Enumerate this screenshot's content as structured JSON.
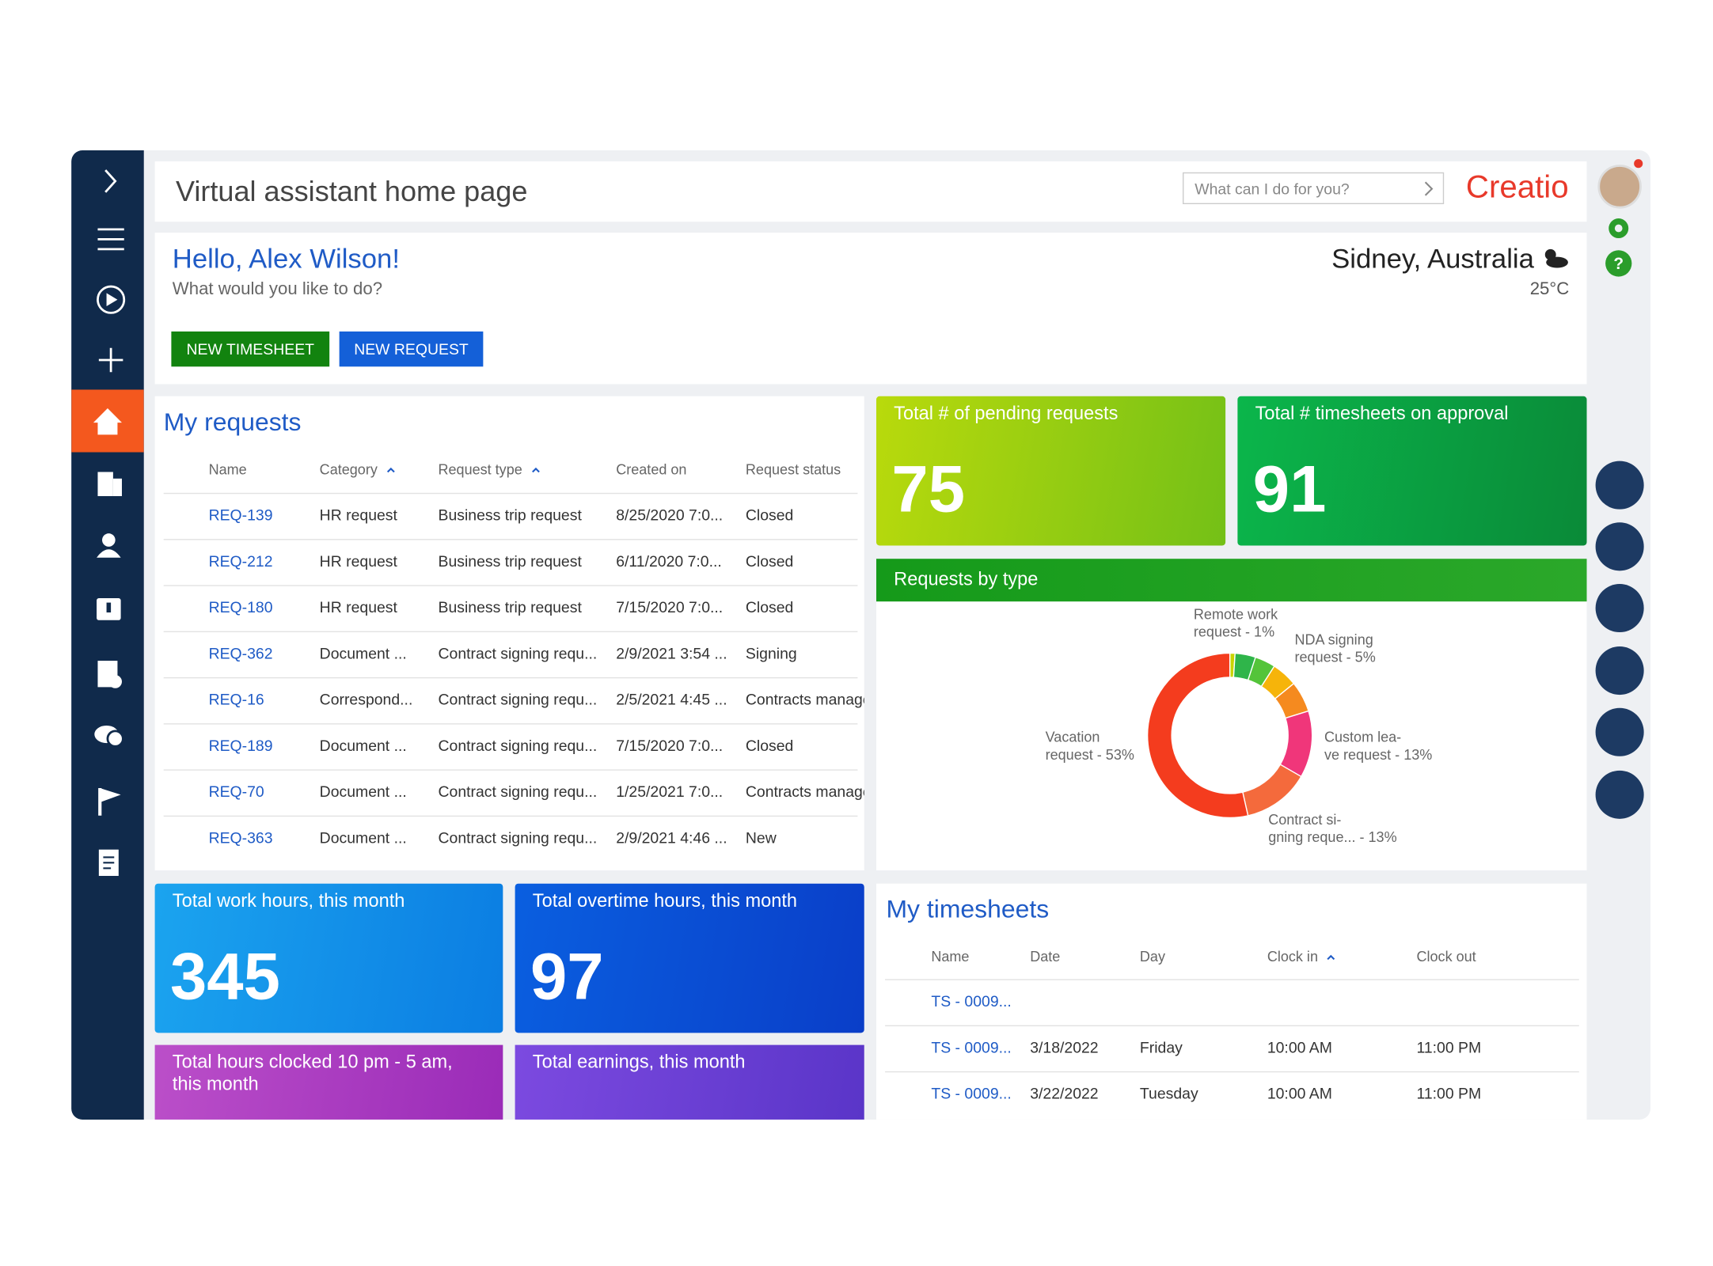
{
  "header": {
    "title": "Virtual assistant home page",
    "search_placeholder": "What can I do for you?",
    "logo": "Creatio"
  },
  "greeting": {
    "title": "Hello, Alex Wilson!",
    "subtitle": "What would you like to do?",
    "location": "Sidney, Australia",
    "temperature": "25°C",
    "buttons": [
      "NEW TIMESHEET",
      "NEW REQUEST"
    ]
  },
  "requests": {
    "title": "My requests",
    "columns": [
      "Name",
      "Category",
      "Request type",
      "Created on",
      "Request status"
    ],
    "rows": [
      [
        "REQ-139",
        "HR request",
        "Business trip request",
        "8/25/2020 7:0...",
        "Closed"
      ],
      [
        "REQ-212",
        "HR request",
        "Business trip request",
        "6/11/2020 7:0...",
        "Closed"
      ],
      [
        "REQ-180",
        "HR request",
        "Business trip request",
        "7/15/2020 7:0...",
        "Closed"
      ],
      [
        "REQ-362",
        "Document ...",
        "Contract signing requ...",
        "2/9/2021 3:54 ...",
        "Signing"
      ],
      [
        "REQ-16",
        "Correspond...",
        "Contract signing requ...",
        "2/5/2021 4:45 ...",
        "Contracts management"
      ],
      [
        "REQ-189",
        "Document ...",
        "Contract signing requ...",
        "7/15/2020 7:0...",
        "Closed"
      ],
      [
        "REQ-70",
        "Document ...",
        "Contract signing requ...",
        "1/25/2021 7:0...",
        "Contracts management"
      ],
      [
        "REQ-363",
        "Document ...",
        "Contract signing requ...",
        "2/9/2021 4:46 ...",
        "New"
      ]
    ]
  },
  "kpis": [
    {
      "title": "Total # of pending requests",
      "value": 75
    },
    {
      "title": "Total # timesheets on approval",
      "value": 91
    },
    {
      "title": "Total work hours, this month",
      "value": 345
    },
    {
      "title": "Total overtime hours, this month",
      "value": 97
    },
    {
      "title": "Total hours clocked 10 pm - 5 am,\nthis month"
    },
    {
      "title": "Total earnings, this month"
    }
  ],
  "chart_data": {
    "type": "pie",
    "title": "Requests by type",
    "values": [
      1,
      4,
      4,
      5,
      6,
      13,
      13,
      53
    ],
    "value_labels": [
      "Remote work\nrequest - 1%",
      null,
      null,
      "NDA signing\nrequest - 5%",
      null,
      "Custom lea-\nve request - 13%",
      "Contract si-\ngning reque... - 13%",
      "Vacation\nrequest - 53%"
    ],
    "colors": [
      "#c9d400",
      "#2fb54a",
      "#54c43a",
      "#f6b40a",
      "#f58a1f",
      "#f0367a",
      "#f46a3c",
      "#f43c1e"
    ]
  },
  "timesheets": {
    "title": "My timesheets",
    "columns": [
      "Name",
      "Date",
      "Day",
      "Clock in",
      "Clock out"
    ],
    "rows": [
      [
        "TS - 0009...",
        null,
        null,
        null,
        null
      ],
      [
        "TS - 0009...",
        "3/18/2022",
        "Friday",
        "10:00 AM",
        "11:00 PM"
      ],
      [
        "TS - 0009...",
        "3/22/2022",
        "Tuesday",
        "10:00 AM",
        "11:00 PM"
      ]
    ]
  }
}
